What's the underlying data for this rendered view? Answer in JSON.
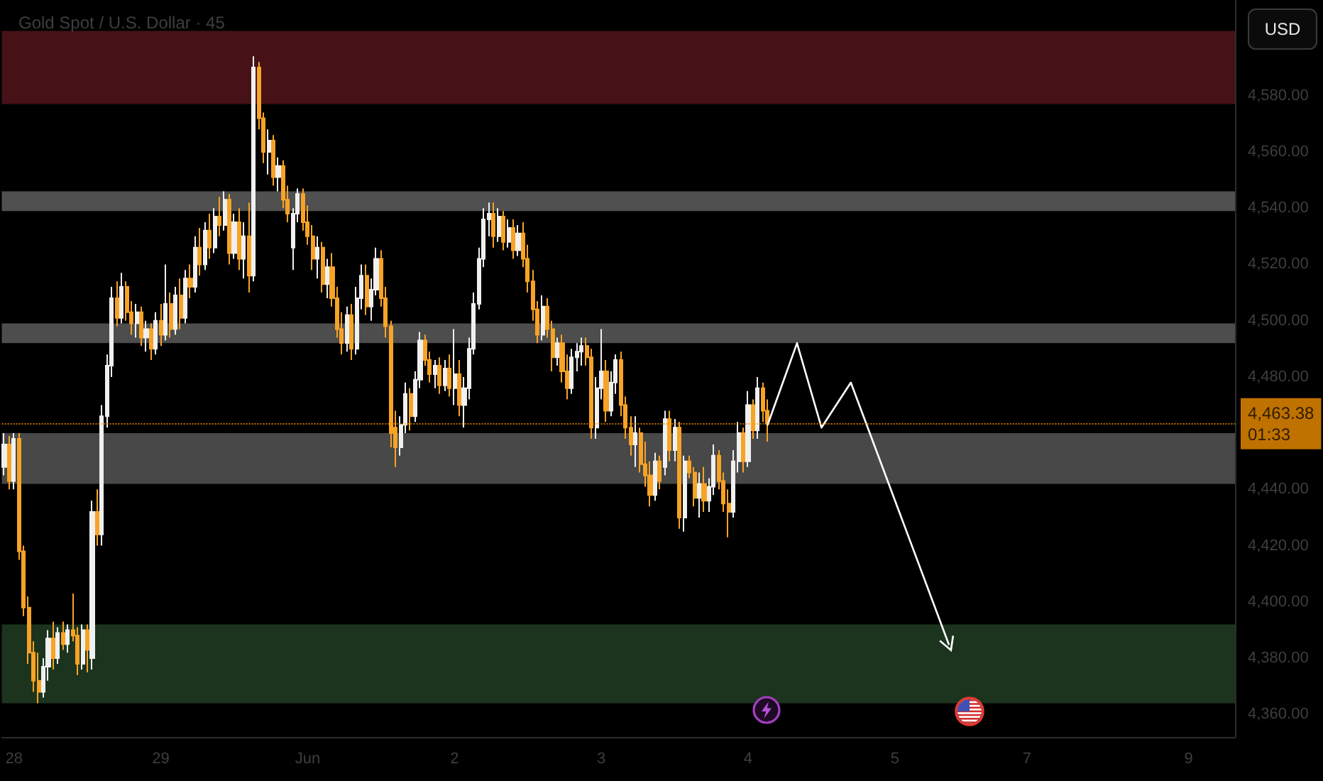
{
  "chart_data": {
    "type": "candlestick",
    "title": "Gold Spot / U.S. Dollar · 45",
    "ylabel": "USD",
    "categories": [
      null,
      null,
      "28",
      null,
      null,
      null,
      null,
      null,
      null,
      null,
      null,
      null,
      null,
      null,
      null,
      null,
      null,
      null,
      null,
      null,
      null,
      null,
      null,
      null,
      null,
      null,
      null,
      null,
      null,
      null,
      null,
      null,
      "29",
      null,
      null,
      null,
      null,
      null,
      null,
      null,
      null,
      null,
      null,
      null,
      null,
      null,
      null,
      null,
      null,
      null,
      null,
      null,
      null,
      null,
      null,
      null,
      null,
      null,
      null,
      null,
      null,
      null,
      "Jun",
      null,
      null,
      null,
      null,
      null,
      null,
      null,
      null,
      null,
      null,
      null,
      null,
      null,
      null,
      null,
      null,
      null,
      null,
      null,
      null,
      null,
      null,
      null,
      null,
      null,
      null,
      null,
      null,
      null,
      "2",
      null,
      null,
      null,
      null,
      null,
      null,
      null,
      null,
      null,
      null,
      null,
      null,
      null,
      null,
      null,
      null,
      null,
      null,
      null,
      null,
      null,
      null,
      null,
      null,
      null,
      null,
      null,
      null,
      null,
      "3",
      null,
      null,
      null,
      null,
      null,
      null,
      null,
      null,
      null,
      null,
      null,
      null,
      null,
      null,
      null,
      null,
      null,
      null,
      null,
      null,
      null,
      null,
      null,
      null,
      null,
      null,
      null,
      null,
      null,
      "4",
      null,
      null,
      null,
      null,
      null,
      null,
      null,
      null,
      null,
      null,
      null,
      null,
      null,
      null,
      null,
      null,
      null,
      null,
      null,
      null,
      null,
      null,
      null,
      null,
      null,
      null,
      null,
      null,
      null,
      "5",
      null,
      null,
      null,
      null,
      null,
      null,
      null,
      null,
      null,
      null,
      null,
      null,
      null,
      null,
      null,
      null,
      null,
      null,
      null,
      null,
      null,
      null,
      null,
      null,
      null,
      null,
      "7",
      null,
      null,
      null,
      null,
      null,
      null,
      null,
      null,
      null,
      null,
      null,
      null,
      null,
      null,
      null,
      null,
      null,
      null,
      null,
      null,
      null,
      null,
      null,
      null,
      null,
      null,
      null,
      null,
      null,
      null,
      null,
      null,
      "9",
      null,
      null,
      null,
      null,
      null,
      null,
      null,
      null,
      null
    ],
    "ylim": [
      4352,
      4614
    ],
    "yticks": [
      {
        "value": 4360,
        "label": "4,360.00"
      },
      {
        "value": 4380,
        "label": "4,380.00"
      },
      {
        "value": 4400,
        "label": "4,400.00"
      },
      {
        "value": 4420,
        "label": "4,420.00"
      },
      {
        "value": 4440,
        "label": "4,440.00"
      },
      {
        "value": 4480,
        "label": "4,480.00"
      },
      {
        "value": 4500,
        "label": "4,500.00"
      },
      {
        "value": 4520,
        "label": "4,520.00"
      },
      {
        "value": 4540,
        "label": "4,540.00"
      },
      {
        "value": 4560,
        "label": "4,560.00"
      },
      {
        "value": 4580,
        "label": "4,580.00"
      }
    ],
    "grid": false,
    "bands": [
      {
        "axis": "y",
        "from": 4577,
        "to": 4603,
        "color": "#461218"
      },
      {
        "axis": "y",
        "from": 4539,
        "to": 4546,
        "color": "#505050"
      },
      {
        "axis": "y",
        "from": 4492,
        "to": 4499,
        "color": "#4d4d4d"
      },
      {
        "axis": "y",
        "from": 4442,
        "to": 4460,
        "color": "#484848"
      },
      {
        "axis": "y",
        "from": 4364,
        "to": 4392,
        "color": "#1c341e"
      }
    ],
    "ref_lines": [
      {
        "axis": "y",
        "value": 4463.38,
        "label": "4,463.38\n01:33",
        "color": "#ff9800",
        "line_style": "dotted"
      }
    ],
    "ohlc": [
      [
        4448,
        4460,
        4445,
        4456
      ],
      [
        4456,
        4459,
        4440,
        4443
      ],
      [
        4443,
        4460,
        4440,
        4458
      ],
      [
        4458,
        4460,
        4415,
        4418
      ],
      [
        4418,
        4420,
        4395,
        4398
      ],
      [
        4398,
        4402,
        4378,
        4382
      ],
      [
        4382,
        4386,
        4368,
        4372
      ],
      [
        4372,
        4382,
        4364,
        4368
      ],
      [
        4368,
        4380,
        4366,
        4377
      ],
      [
        4377,
        4390,
        4372,
        4387
      ],
      [
        4387,
        4393,
        4376,
        4380
      ],
      [
        4380,
        4391,
        4378,
        4389
      ],
      [
        4389,
        4393,
        4383,
        4385
      ],
      [
        4385,
        4392,
        4382,
        4390
      ],
      [
        4390,
        4403,
        4386,
        4388
      ],
      [
        4388,
        4391,
        4374,
        4378
      ],
      [
        4378,
        4392,
        4376,
        4390
      ],
      [
        4390,
        4392,
        4375,
        4383
      ],
      [
        4380,
        4436,
        4376,
        4432
      ],
      [
        4432,
        4440,
        4420,
        4424
      ],
      [
        4424,
        4470,
        4420,
        4466
      ],
      [
        4466,
        4488,
        4462,
        4484
      ],
      [
        4484,
        4512,
        4480,
        4508
      ],
      [
        4508,
        4514,
        4498,
        4501
      ],
      [
        4501,
        4517,
        4499,
        4512
      ],
      [
        4512,
        4514,
        4500,
        4503
      ],
      [
        4503,
        4507,
        4495,
        4499
      ],
      [
        4499,
        4506,
        4494,
        4503
      ],
      [
        4503,
        4505,
        4491,
        4494
      ],
      [
        4494,
        4500,
        4489,
        4497
      ],
      [
        4497,
        4499,
        4486,
        4490
      ],
      [
        4490,
        4503,
        4488,
        4500
      ],
      [
        4500,
        4506,
        4491,
        4495
      ],
      [
        4495,
        4520,
        4493,
        4506
      ],
      [
        4506,
        4510,
        4494,
        4497
      ],
      [
        4497,
        4512,
        4495,
        4509
      ],
      [
        4509,
        4515,
        4497,
        4501
      ],
      [
        4501,
        4518,
        4499,
        4515
      ],
      [
        4515,
        4520,
        4508,
        4512
      ],
      [
        4512,
        4530,
        4510,
        4526
      ],
      [
        4526,
        4533,
        4516,
        4520
      ],
      [
        4520,
        4535,
        4518,
        4532
      ],
      [
        4532,
        4538,
        4522,
        4526
      ],
      [
        4526,
        4540,
        4524,
        4537
      ],
      [
        4537,
        4544,
        4530,
        4534
      ],
      [
        4534,
        4546,
        4532,
        4543
      ],
      [
        4543,
        4545,
        4520,
        4524
      ],
      [
        4524,
        4538,
        4522,
        4535
      ],
      [
        4535,
        4540,
        4518,
        4522
      ],
      [
        4522,
        4535,
        4515,
        4530
      ],
      [
        4530,
        4542,
        4510,
        4516
      ],
      [
        4516,
        4594,
        4514,
        4590
      ],
      [
        4590,
        4592,
        4568,
        4572
      ],
      [
        4572,
        4574,
        4556,
        4560
      ],
      [
        4560,
        4568,
        4552,
        4564
      ],
      [
        4564,
        4566,
        4548,
        4551
      ],
      [
        4551,
        4558,
        4546,
        4555
      ],
      [
        4555,
        4557,
        4540,
        4543
      ],
      [
        4543,
        4548,
        4535,
        4538
      ],
      [
        4526,
        4540,
        4518,
        4538
      ],
      [
        4538,
        4547,
        4535,
        4545
      ],
      [
        4545,
        4547,
        4532,
        4535
      ],
      [
        4535,
        4541,
        4527,
        4530
      ],
      [
        4530,
        4534,
        4518,
        4522
      ],
      [
        4522,
        4530,
        4515,
        4526
      ],
      [
        4526,
        4528,
        4510,
        4513
      ],
      [
        4513,
        4522,
        4508,
        4519
      ],
      [
        4519,
        4524,
        4505,
        4508
      ],
      [
        4508,
        4512,
        4494,
        4497
      ],
      [
        4497,
        4503,
        4488,
        4492
      ],
      [
        4492,
        4505,
        4489,
        4502
      ],
      [
        4502,
        4506,
        4486,
        4490
      ],
      [
        4490,
        4512,
        4488,
        4508
      ],
      [
        4508,
        4520,
        4504,
        4516
      ],
      [
        4516,
        4520,
        4502,
        4505
      ],
      [
        4505,
        4515,
        4500,
        4511
      ],
      [
        4511,
        4526,
        4509,
        4522
      ],
      [
        4522,
        4525,
        4505,
        4508
      ],
      [
        4508,
        4512,
        4494,
        4498
      ],
      [
        4498,
        4500,
        4455,
        4460
      ],
      [
        4462,
        4468,
        4448,
        4455
      ],
      [
        4455,
        4466,
        4452,
        4463
      ],
      [
        4463,
        4478,
        4460,
        4474
      ],
      [
        4474,
        4476,
        4461,
        4466
      ],
      [
        4466,
        4482,
        4464,
        4479
      ],
      [
        4479,
        4496,
        4476,
        4493
      ],
      [
        4493,
        4495,
        4484,
        4486
      ],
      [
        4486,
        4489,
        4478,
        4481
      ],
      [
        4481,
        4486,
        4476,
        4484
      ],
      [
        4484,
        4487,
        4474,
        4477
      ],
      [
        4477,
        4486,
        4475,
        4483
      ],
      [
        4483,
        4488,
        4473,
        4476
      ],
      [
        4476,
        4497,
        4470,
        4481
      ],
      [
        4481,
        4486,
        4466,
        4470
      ],
      [
        4470,
        4480,
        4462,
        4476
      ],
      [
        4476,
        4494,
        4472,
        4490
      ],
      [
        4490,
        4510,
        4488,
        4506
      ],
      [
        4506,
        4526,
        4504,
        4522
      ],
      [
        4522,
        4540,
        4519,
        4536
      ],
      [
        4536,
        4542,
        4530,
        4538
      ],
      [
        4538,
        4542,
        4526,
        4530
      ],
      [
        4530,
        4540,
        4528,
        4537
      ],
      [
        4537,
        4539,
        4525,
        4528
      ],
      [
        4528,
        4536,
        4526,
        4533
      ],
      [
        4533,
        4536,
        4522,
        4525
      ],
      [
        4525,
        4534,
        4523,
        4531
      ],
      [
        4531,
        4535,
        4519,
        4522
      ],
      [
        4522,
        4527,
        4510,
        4514
      ],
      [
        4514,
        4518,
        4500,
        4504
      ],
      [
        4504,
        4507,
        4492,
        4495
      ],
      [
        4495,
        4509,
        4493,
        4505
      ],
      [
        4505,
        4508,
        4494,
        4497
      ],
      [
        4497,
        4500,
        4482,
        4487
      ],
      [
        4487,
        4494,
        4484,
        4492
      ],
      [
        4492,
        4495,
        4478,
        4482
      ],
      [
        4482,
        4488,
        4472,
        4476
      ],
      [
        4476,
        4490,
        4474,
        4487
      ],
      [
        4487,
        4492,
        4482,
        4489
      ],
      [
        4489,
        4494,
        4484,
        4491
      ],
      [
        4491,
        4494,
        4484,
        4487
      ],
      [
        4487,
        4490,
        4458,
        4462
      ],
      [
        4462,
        4480,
        4458,
        4476
      ],
      [
        4476,
        4497,
        4472,
        4482
      ],
      [
        4482,
        4486,
        4464,
        4468
      ],
      [
        4468,
        4482,
        4466,
        4478
      ],
      [
        4478,
        4488,
        4474,
        4486
      ],
      [
        4486,
        4489,
        4466,
        4470
      ],
      [
        4470,
        4473,
        4458,
        4462
      ],
      [
        4462,
        4466,
        4452,
        4456
      ],
      [
        4456,
        4466,
        4448,
        4460
      ],
      [
        4460,
        4462,
        4446,
        4449
      ],
      [
        4449,
        4457,
        4441,
        4445
      ],
      [
        4445,
        4450,
        4434,
        4438
      ],
      [
        4438,
        4453,
        4436,
        4450
      ],
      [
        4450,
        4452,
        4440,
        4443
      ],
      [
        4448,
        4468,
        4445,
        4465
      ],
      [
        4465,
        4468,
        4450,
        4454
      ],
      [
        4454,
        4465,
        4450,
        4462
      ],
      [
        4462,
        4464,
        4426,
        4430
      ],
      [
        4430,
        4452,
        4425,
        4450
      ],
      [
        4450,
        4452,
        4444,
        4446
      ],
      [
        4446,
        4448,
        4434,
        4437
      ],
      [
        4437,
        4446,
        4430,
        4442
      ],
      [
        4442,
        4448,
        4432,
        4436
      ],
      [
        4436,
        4444,
        4432,
        4441
      ],
      [
        4441,
        4456,
        4438,
        4452
      ],
      [
        4452,
        4454,
        4440,
        4443
      ],
      [
        4443,
        4446,
        4432,
        4435
      ],
      [
        4435,
        4440,
        4423,
        4432
      ],
      [
        4432,
        4454,
        4430,
        4450
      ],
      [
        4450,
        4464,
        4446,
        4460
      ],
      [
        4460,
        4462,
        4446,
        4450
      ],
      [
        4450,
        4475,
        4448,
        4470
      ],
      [
        4470,
        4472,
        4458,
        4461
      ],
      [
        4461,
        4480,
        4458,
        4476
      ],
      [
        4476,
        4478,
        4464,
        4468
      ],
      [
        4468,
        4472,
        4457,
        4463.38
      ],
      null,
      null,
      null,
      null,
      null,
      null,
      null,
      null,
      null,
      null,
      null,
      null,
      null,
      null,
      null,
      null,
      null,
      null,
      null,
      null,
      null,
      null,
      null,
      null,
      null,
      null,
      null,
      null,
      null,
      null,
      null,
      null,
      null,
      null,
      null,
      null,
      null,
      null,
      null,
      null,
      null,
      null,
      null,
      null,
      null,
      null,
      null,
      null,
      null,
      null,
      null,
      null,
      null,
      null,
      null,
      null,
      null,
      null,
      null,
      null,
      null,
      null,
      null,
      null,
      null,
      null,
      null,
      null,
      null,
      null,
      null,
      null,
      null,
      null,
      null,
      null,
      null,
      null,
      null,
      null,
      null,
      null,
      null,
      null,
      null,
      null,
      null,
      null,
      null,
      null,
      null,
      null,
      null,
      null,
      null
    ],
    "colors": [
      "#f0f0f0",
      "#f7a325",
      "#f0f0f0",
      "#f7a325",
      "#f7a325",
      "#f7a325",
      "#f7a325",
      "#f7a325",
      "#f0f0f0",
      "#f0f0f0",
      "#f7a325",
      "#f0f0f0",
      "#f7a325",
      "#f0f0f0",
      "#f7a325",
      "#f7a325",
      "#f0f0f0",
      "#f7a325",
      "#f0f0f0",
      "#f7a325",
      "#f0f0f0",
      "#f0f0f0",
      "#f0f0f0",
      "#f7a325",
      "#f0f0f0",
      "#f7a325",
      "#f7a325",
      "#f0f0f0",
      "#f7a325",
      "#f0f0f0",
      "#f7a325",
      "#f0f0f0",
      "#f7a325",
      "#f0f0f0",
      "#f7a325",
      "#f0f0f0",
      "#f7a325",
      "#f0f0f0",
      "#f7a325",
      "#f0f0f0",
      "#f7a325",
      "#f0f0f0",
      "#f7a325",
      "#f0f0f0",
      "#f7a325",
      "#f0f0f0",
      "#f7a325",
      "#f0f0f0",
      "#f7a325",
      "#f0f0f0",
      "#f7a325",
      "#f0f0f0",
      "#f7a325",
      "#f7a325",
      "#f0f0f0",
      "#f7a325",
      "#f0f0f0",
      "#f7a325",
      "#f7a325",
      "#f0f0f0",
      "#f0f0f0",
      "#f7a325",
      "#f7a325",
      "#f7a325",
      "#f0f0f0",
      "#f7a325",
      "#f0f0f0",
      "#f7a325",
      "#f7a325",
      "#f7a325",
      "#f0f0f0",
      "#f7a325",
      "#f0f0f0",
      "#f0f0f0",
      "#f7a325",
      "#f0f0f0",
      "#f0f0f0",
      "#f7a325",
      "#f7a325",
      "#f7a325",
      "#f7a325",
      "#f0f0f0",
      "#f0f0f0",
      "#f7a325",
      "#f0f0f0",
      "#f0f0f0",
      "#f7a325",
      "#f7a325",
      "#f0f0f0",
      "#f7a325",
      "#f0f0f0",
      "#f7a325",
      "#f0f0f0",
      "#f7a325",
      "#f0f0f0",
      "#f0f0f0",
      "#f0f0f0",
      "#f0f0f0",
      "#f0f0f0",
      "#f0f0f0",
      "#f7a325",
      "#f0f0f0",
      "#f7a325",
      "#f0f0f0",
      "#f7a325",
      "#f0f0f0",
      "#f7a325",
      "#f7a325",
      "#f7a325",
      "#f7a325",
      "#f0f0f0",
      "#f7a325",
      "#f7a325",
      "#f0f0f0",
      "#f7a325",
      "#f7a325",
      "#f0f0f0",
      "#f0f0f0",
      "#f0f0f0",
      "#f7a325",
      "#f7a325",
      "#f0f0f0",
      "#f0f0f0",
      "#f7a325",
      "#f0f0f0",
      "#f0f0f0",
      "#f7a325",
      "#f7a325",
      "#f7a325",
      "#f0f0f0",
      "#f7a325",
      "#f7a325",
      "#f7a325",
      "#f0f0f0",
      "#f7a325",
      "#f0f0f0",
      "#f7a325",
      "#f0f0f0",
      "#f7a325",
      "#f0f0f0",
      "#f7a325",
      "#f7a325",
      "#f0f0f0",
      "#f7a325",
      "#f0f0f0",
      "#f0f0f0",
      "#f7a325",
      "#f7a325",
      "#f7a325",
      "#f0f0f0",
      "#f0f0f0",
      "#f7a325",
      "#f0f0f0",
      "#f7a325",
      "#f0f0f0",
      "#f7a325",
      "#f7a325",
      null,
      null,
      null,
      null,
      null,
      null,
      null,
      null,
      null,
      null,
      null,
      null,
      null,
      null,
      null,
      null,
      null,
      null,
      null,
      null,
      null,
      null,
      null,
      null,
      null,
      null,
      null,
      null,
      null,
      null,
      null,
      null,
      null,
      null,
      null,
      null,
      null,
      null,
      null,
      null,
      null,
      null,
      null,
      null,
      null,
      null,
      null,
      null,
      null,
      null,
      null,
      null,
      null,
      null,
      null,
      null,
      null,
      null,
      null,
      null,
      null,
      null,
      null,
      null,
      null,
      null,
      null,
      null,
      null,
      null,
      null,
      null,
      null,
      null,
      null,
      null,
      null,
      null,
      null,
      null,
      null,
      null,
      null,
      null,
      null,
      null,
      null,
      null,
      null,
      null,
      null,
      null,
      null,
      null,
      null
    ],
    "series": [
      {
        "type": "line",
        "color": "#ffffff",
        "values": [
          null,
          null,
          null,
          null,
          null,
          null,
          null,
          null,
          null,
          null,
          null,
          null,
          null,
          null,
          null,
          null,
          null,
          null,
          null,
          null,
          null,
          null,
          null,
          null,
          null,
          null,
          null,
          null,
          null,
          null,
          null,
          null,
          null,
          null,
          null,
          null,
          null,
          null,
          null,
          null,
          null,
          null,
          null,
          null,
          null,
          null,
          null,
          null,
          null,
          null,
          null,
          null,
          null,
          null,
          null,
          null,
          null,
          null,
          null,
          null,
          null,
          null,
          null,
          null,
          null,
          null,
          null,
          null,
          null,
          null,
          null,
          null,
          null,
          null,
          null,
          null,
          null,
          null,
          null,
          null,
          null,
          null,
          null,
          null,
          null,
          null,
          null,
          null,
          null,
          null,
          null,
          null,
          null,
          null,
          null,
          null,
          null,
          null,
          null,
          null,
          null,
          null,
          null,
          null,
          null,
          null,
          null,
          null,
          null,
          null,
          null,
          null,
          null,
          null,
          null,
          null,
          null,
          null,
          null,
          null,
          null,
          null,
          null,
          null,
          null,
          null,
          null,
          null,
          null,
          null,
          null,
          null,
          null,
          null,
          null,
          null,
          null,
          null,
          null,
          null,
          null,
          null,
          null,
          null,
          null,
          null,
          null,
          null,
          null,
          null,
          null,
          null,
          null,
          null,
          null,
          null,
          4463,
          null,
          null,
          null,
          null,
          null,
          4492,
          null,
          null,
          null,
          null,
          4462,
          null,
          null,
          null,
          null,
          null,
          4478,
          null,
          null,
          null,
          null,
          null,
          null,
          null,
          null,
          null,
          null,
          null,
          null,
          null,
          null,
          null,
          null,
          null,
          null,
          null,
          4385,
          null,
          null,
          null,
          null,
          null,
          null,
          null,
          null,
          null,
          null,
          null,
          null,
          null,
          null,
          null,
          null,
          null,
          null,
          null,
          null,
          null,
          null,
          null,
          null,
          null,
          null,
          null,
          null,
          null,
          null,
          null,
          null,
          null,
          null,
          null,
          null,
          null,
          null,
          null,
          null,
          null,
          null,
          null,
          null,
          null,
          null,
          null,
          null,
          null,
          null,
          null,
          null,
          null,
          null,
          null,
          null,
          null,
          null
        ]
      }
    ]
  }
}
